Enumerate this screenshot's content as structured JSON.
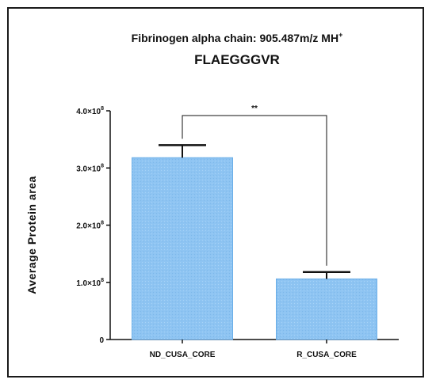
{
  "chart_data": {
    "type": "bar",
    "title": "Fibrinogen alpha chain: 905.487m/z MH",
    "title_superscript": "+",
    "subtitle": "FLAEGGGVR",
    "xlabel": "",
    "ylabel": "Average Protein area",
    "categories": [
      "ND_CUSA_CORE",
      "R_CUSA_CORE"
    ],
    "values": [
      318000000.0,
      106000000.0
    ],
    "error_upper": [
      340000000.0,
      118000000.0
    ],
    "ylim": [
      0,
      400000000.0
    ],
    "yticks": [
      0,
      100000000.0,
      200000000.0,
      300000000.0,
      400000000.0
    ],
    "ytick_labels": [
      {
        "mantissa": "0",
        "exp": ""
      },
      {
        "mantissa": "1.0×10",
        "exp": "8"
      },
      {
        "mantissa": "2.0×10",
        "exp": "8"
      },
      {
        "mantissa": "3.0×10",
        "exp": "8"
      },
      {
        "mantissa": "4.0×10",
        "exp": "8"
      }
    ],
    "significance": {
      "pair": [
        0,
        1
      ],
      "label": "**"
    },
    "grid": false,
    "bar_color": "#8ec4f2",
    "bar_edge_color": "#6aaee8"
  }
}
